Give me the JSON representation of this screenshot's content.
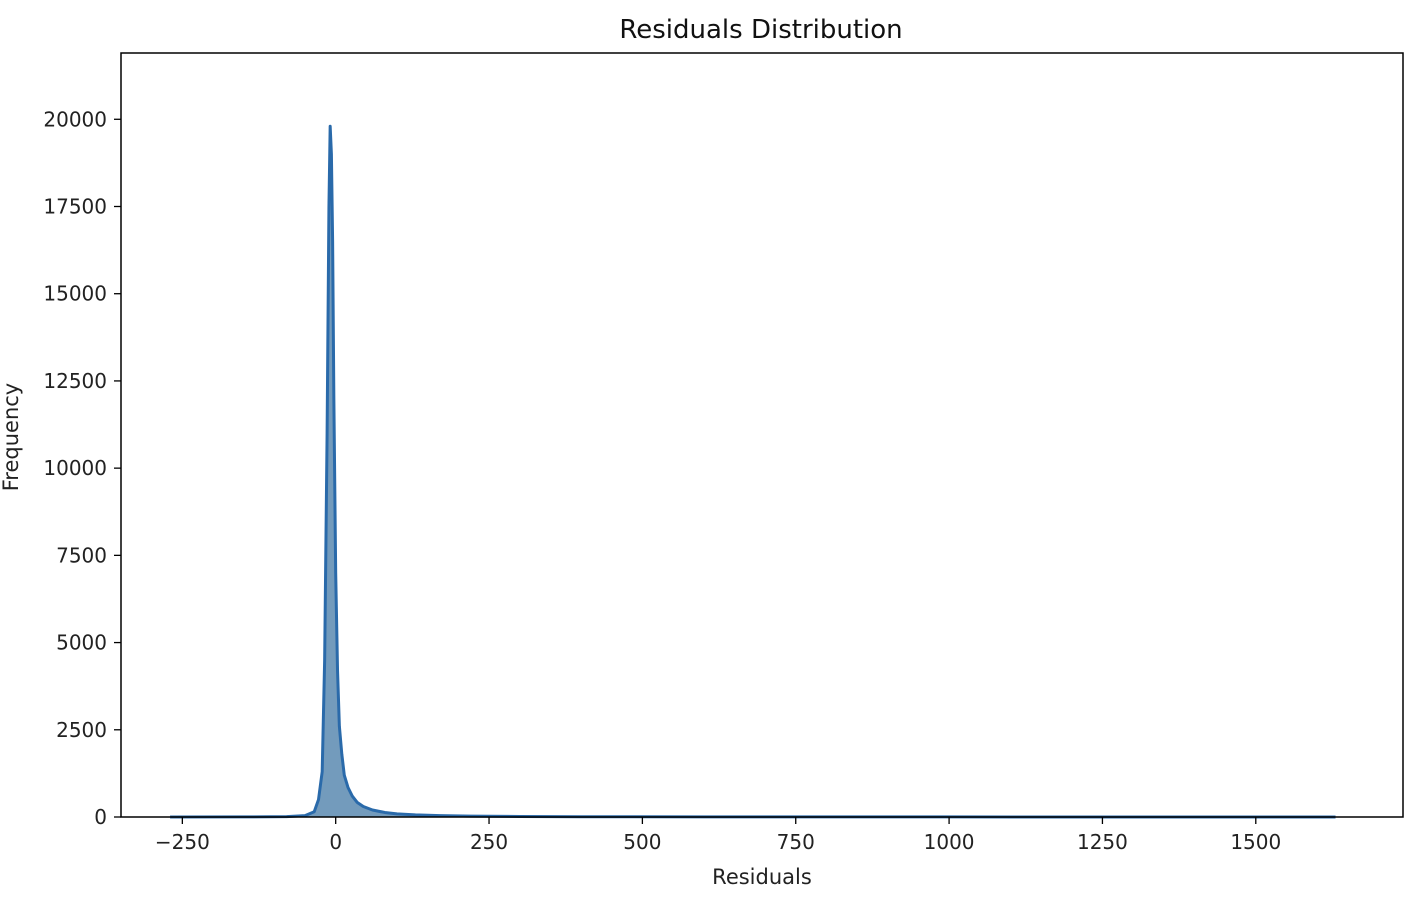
{
  "chart_data": {
    "type": "area",
    "title": "Residuals Distribution",
    "xlabel": "Residuals",
    "ylabel": "Frequency",
    "xlim": [
      -350,
      1740
    ],
    "ylim": [
      0,
      21900
    ],
    "xticks": [
      -250,
      0,
      250,
      500,
      750,
      1000,
      1250,
      1500
    ],
    "xtick_labels": [
      "−250",
      "0",
      "250",
      "500",
      "750",
      "1000",
      "1250",
      "1500"
    ],
    "yticks": [
      0,
      2500,
      5000,
      7500,
      10000,
      12500,
      15000,
      17500,
      20000
    ],
    "ytick_labels": [
      "0",
      "2500",
      "5000",
      "7500",
      "10000",
      "12500",
      "15000",
      "17500",
      "20000"
    ],
    "grid": false,
    "fill_color": "#5b8ab0",
    "line_color": "#2a6aaa",
    "series": [
      {
        "x": [
          -270,
          -150,
          -80,
          -50,
          -35,
          -28,
          -22,
          -18,
          -14,
          -11,
          -9,
          -7,
          -5,
          -3,
          0,
          3,
          6,
          10,
          14,
          20,
          27,
          35,
          45,
          60,
          80,
          100,
          130,
          170,
          220,
          300,
          400,
          600,
          1000,
          1400,
          1630
        ],
        "values": [
          0,
          2,
          10,
          40,
          150,
          500,
          1300,
          4500,
          11000,
          17500,
          19800,
          19000,
          16500,
          12000,
          7000,
          4200,
          2600,
          1800,
          1200,
          850,
          600,
          420,
          300,
          200,
          130,
          90,
          60,
          40,
          25,
          15,
          8,
          4,
          2,
          1,
          0
        ]
      }
    ]
  }
}
